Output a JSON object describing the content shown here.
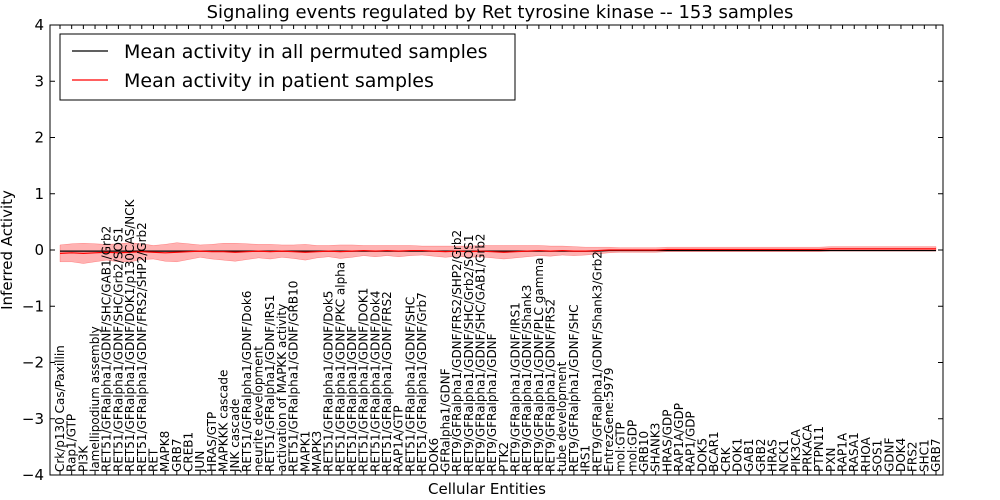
{
  "chart_data": {
    "type": "line",
    "title": "Signaling events regulated by Ret tyrosine kinase -- 153 samples",
    "xlabel": "Cellular Entities",
    "ylabel": "Inferred Activity",
    "ylim": [
      -4,
      4
    ],
    "yticks": [
      "−4",
      "−3",
      "−2",
      "−1",
      "0",
      "1",
      "2",
      "3",
      "4"
    ],
    "legend_position": "top-left",
    "categories": [
      "Crk/p130 Cas/Paxillin",
      "Rap1/GTP",
      "PI3K",
      "lamellipodium assembly",
      "RET51/GFRalpha1/GDNF/SHC/GAB1/Grb2",
      "RET51/GFRalpha1/GDNF/SHC/Grb2/SOS1",
      "RET51/GFRalpha1/GDNF/DOK1/p130CAS/NCK",
      "RET51/GFRalpha1/GDNF/FRS2/SHP2/Grb2",
      "RET",
      "MAPK8",
      "GRB7",
      "CREB1",
      "JUN",
      "HRAS/GTP",
      "MAPKKK cascade",
      "JNK cascade",
      "RET51/GFRalpha1/GDNF/Dok6",
      "neurite development",
      "RET51/GFRalpha1/GDNF/IRS1",
      "activation of MAPKK activity",
      "RET51/GFRalpha1/GDNF/GRB10",
      "MAPK1",
      "MAPK3",
      "RET51/GFRalpha1/GDNF/Dok5",
      "RET51/GFRalpha1/GDNF/PKC alpha",
      "RET51/GFRalpha1/GDNF",
      "RET51/GFRalpha1/GDNF/DOK1",
      "RET51/GFRalpha1/GDNF/Dok4",
      "RET51/GFRalpha1/GDNF/FRS2",
      "RAP1A/GTP",
      "RET51/GFRalpha1/GDNF/SHC",
      "RET51/GFRalpha1/GDNF/Grb7",
      "DOK6",
      "GFRalpha1/GDNF",
      "RET9/GFRalpha1/GDNF/FRS2/SHP2/Grb2",
      "RET9/GFRalpha1/GDNF/SHC/Grb2/SOS1",
      "RET9/GFRalpha1/GDNF/SHC/GAB1/Grb2",
      "RET9/GFRalpha1/GDNF",
      "PTK2",
      "RET9/GFRalpha1/GDNF/IRS1",
      "RET9/GFRalpha1/GDNF/Shank3",
      "RET9/GFRalpha1/GDNF/PLC gamma",
      "RET9/GFRalpha1/GDNF/FRS2",
      "tube development",
      "RET9/GFRalpha1/GDNF/SHC",
      "IRS1",
      "RET9/GFRalpha1/GDNF/Shank3/Grb2",
      "EntrezGene:5979",
      "mol:GTP",
      "mol:GDP",
      "GRB10",
      "SHANK3",
      "HRAS/GDP",
      "RAP1A/GDP",
      "RAP1/GDP",
      "DOK5",
      "BCAR1",
      "CRK",
      "DOK1",
      "GAB1",
      "GRB2",
      "HRAS",
      "NCK1",
      "PIK3CA",
      "PRKACA",
      "PTPN11",
      "PXN",
      "RAP1A",
      "RASA1",
      "RHOA",
      "SOS1",
      "GDNF",
      "DOK4",
      "FRS2",
      "SHC1",
      "GRB7"
    ],
    "series": [
      {
        "name": "Mean activity in all permuted samples",
        "color": "#000000",
        "values": [
          -0.02,
          -0.02,
          -0.02,
          -0.02,
          -0.02,
          -0.02,
          -0.02,
          -0.02,
          -0.02,
          -0.02,
          -0.02,
          -0.02,
          -0.02,
          -0.02,
          -0.02,
          -0.02,
          -0.02,
          -0.02,
          -0.02,
          -0.02,
          -0.02,
          -0.02,
          -0.02,
          -0.02,
          -0.02,
          -0.02,
          -0.02,
          -0.02,
          -0.02,
          -0.02,
          -0.02,
          -0.02,
          -0.02,
          -0.02,
          -0.02,
          -0.02,
          -0.02,
          -0.02,
          -0.02,
          -0.02,
          -0.02,
          -0.02,
          -0.02,
          -0.02,
          -0.02,
          -0.02,
          -0.02,
          -0.01,
          -0.01,
          -0.01,
          -0.01,
          -0.01,
          -0.01,
          -0.01,
          -0.01,
          -0.01,
          -0.01,
          -0.01,
          -0.01,
          -0.01,
          -0.01,
          -0.01,
          -0.01,
          -0.01,
          -0.01,
          -0.01,
          -0.01,
          -0.01,
          -0.01,
          -0.01,
          -0.01,
          -0.01,
          -0.01,
          -0.01,
          -0.01,
          -0.01
        ]
      },
      {
        "name": "Mean activity in patient samples",
        "color": "#ff0000",
        "values": [
          -0.06,
          -0.05,
          -0.06,
          -0.05,
          -0.04,
          -0.05,
          -0.04,
          -0.03,
          -0.04,
          -0.05,
          -0.04,
          -0.03,
          -0.02,
          -0.03,
          -0.03,
          -0.04,
          -0.03,
          -0.02,
          -0.03,
          -0.02,
          -0.03,
          -0.04,
          -0.03,
          -0.02,
          -0.03,
          -0.02,
          -0.01,
          -0.02,
          -0.01,
          -0.02,
          -0.01,
          -0.01,
          -0.02,
          -0.03,
          -0.02,
          -0.03,
          -0.02,
          -0.03,
          -0.04,
          -0.03,
          -0.02,
          -0.01,
          -0.02,
          -0.01,
          -0.02,
          -0.02,
          -0.01,
          0.0,
          0.0,
          0.0,
          0.0,
          0.0,
          0.01,
          0.01,
          0.01,
          0.01,
          0.01,
          0.01,
          0.01,
          0.01,
          0.01,
          0.01,
          0.01,
          0.01,
          0.01,
          0.01,
          0.02,
          0.02,
          0.02,
          0.02,
          0.02,
          0.02,
          0.02,
          0.02,
          0.02,
          0.02
        ]
      }
    ],
    "band": {
      "color": "#ff0000",
      "halfwidth": [
        0.15,
        0.16,
        0.18,
        0.16,
        0.14,
        0.16,
        0.17,
        0.14,
        0.12,
        0.15,
        0.17,
        0.14,
        0.11,
        0.13,
        0.15,
        0.16,
        0.14,
        0.12,
        0.13,
        0.11,
        0.12,
        0.14,
        0.11,
        0.1,
        0.12,
        0.11,
        0.09,
        0.1,
        0.09,
        0.1,
        0.09,
        0.08,
        0.09,
        0.1,
        0.09,
        0.1,
        0.1,
        0.11,
        0.12,
        0.11,
        0.1,
        0.09,
        0.09,
        0.08,
        0.08,
        0.07,
        0.06,
        0.05,
        0.04,
        0.04,
        0.04,
        0.04,
        0.04,
        0.04,
        0.04,
        0.04,
        0.04,
        0.04,
        0.04,
        0.04,
        0.04,
        0.04,
        0.04,
        0.04,
        0.04,
        0.04,
        0.04,
        0.04,
        0.04,
        0.04,
        0.04,
        0.04,
        0.04,
        0.04,
        0.04,
        0.04
      ]
    }
  }
}
